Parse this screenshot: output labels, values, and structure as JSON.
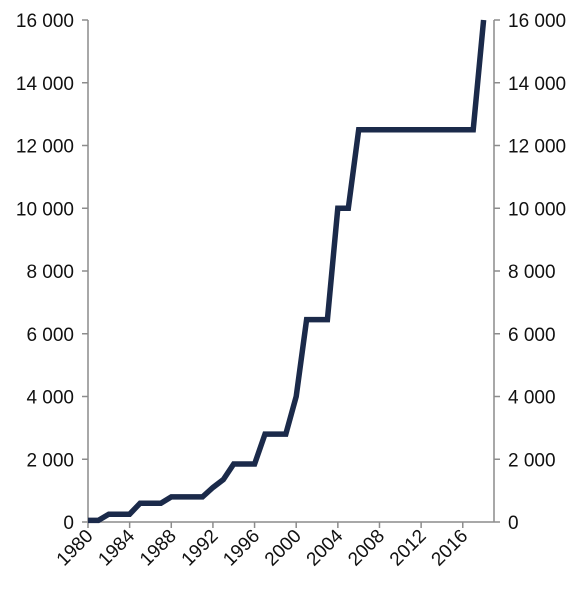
{
  "chart_data": {
    "type": "line",
    "title": "",
    "xlabel": "",
    "ylabel": "",
    "xlim": [
      1980,
      2019
    ],
    "ylim": [
      0,
      16000
    ],
    "grid": false,
    "y_ticks": [
      0,
      2000,
      4000,
      6000,
      8000,
      10000,
      12000,
      14000,
      16000
    ],
    "y_tick_labels": [
      "0",
      "2 000",
      "4 000",
      "6 000",
      "8 000",
      "10 000",
      "12 000",
      "14 000",
      "16 000"
    ],
    "x_ticks": [
      1980,
      1984,
      1988,
      1992,
      1996,
      2000,
      2004,
      2008,
      2012,
      2016
    ],
    "x_tick_labels": [
      "1980",
      "1984",
      "1988",
      "1992",
      "1996",
      "2000",
      "2004",
      "2008",
      "2012",
      "2016"
    ],
    "series": [
      {
        "color": "#1b2a4a",
        "x": [
          1980,
          1981,
          1982,
          1983,
          1984,
          1985,
          1986,
          1987,
          1988,
          1989,
          1990,
          1991,
          1992,
          1993,
          1994,
          1995,
          1996,
          1997,
          1998,
          1999,
          2000,
          2001,
          2002,
          2003,
          2004,
          2005,
          2006,
          2007,
          2008,
          2009,
          2010,
          2011,
          2012,
          2013,
          2014,
          2015,
          2016,
          2017,
          2018
        ],
        "y": [
          50,
          50,
          250,
          250,
          250,
          600,
          600,
          600,
          800,
          800,
          800,
          800,
          1100,
          1350,
          1850,
          1850,
          1850,
          2800,
          2800,
          2800,
          4000,
          6450,
          6450,
          6450,
          10000,
          10000,
          12500,
          12500,
          12500,
          12500,
          12500,
          12500,
          12500,
          12500,
          12500,
          12500,
          12500,
          12500,
          16000
        ]
      }
    ]
  }
}
